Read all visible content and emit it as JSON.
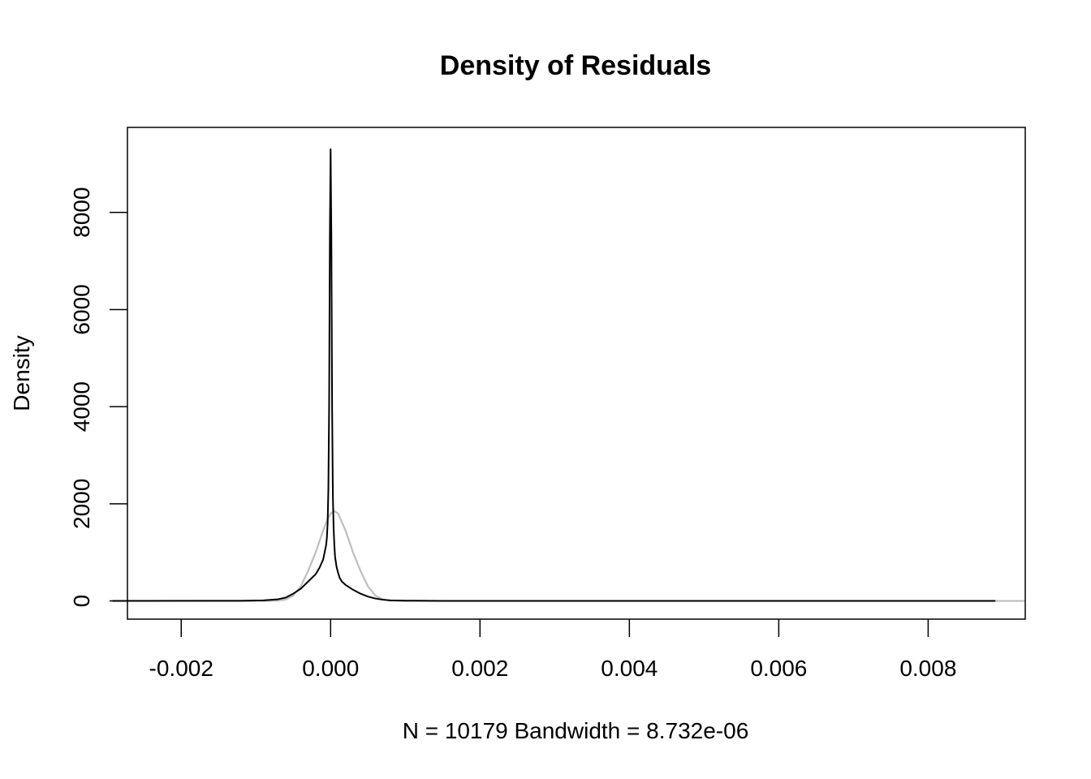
{
  "chart_data": {
    "type": "line",
    "title": "Density of Residuals",
    "xlabel": "N = 10179   Bandwidth = 8.732e-06",
    "ylabel": "Density",
    "xlim": [
      -0.00272,
      0.0093
    ],
    "ylim": [
      -375,
      9750
    ],
    "grid": false,
    "legend": "none",
    "x_ticks": [
      -0.002,
      0.0,
      0.002,
      0.004,
      0.006,
      0.008
    ],
    "x_tick_labels": [
      "-0.002",
      "0.000",
      "0.002",
      "0.004",
      "0.006",
      "0.008"
    ],
    "y_ticks": [
      0,
      2000,
      4000,
      6000,
      8000
    ],
    "y_tick_labels": [
      "0",
      "2000",
      "4000",
      "6000",
      "8000"
    ],
    "series": [
      {
        "color": "#000000",
        "x": [
          -0.00292,
          -0.0012,
          -0.0009,
          -0.0007,
          -0.0006,
          -0.0005,
          -0.0004,
          -0.0003,
          -0.0002,
          -0.00015,
          -0.0001,
          -8e-05,
          -6e-05,
          -5e-05,
          -4e-05,
          -3e-05,
          -2e-05,
          -1e-05,
          0.0,
          1e-05,
          2e-05,
          3e-05,
          4e-05,
          5e-05,
          6e-05,
          8e-05,
          0.0001,
          0.00012,
          0.00015,
          0.0002,
          0.00025,
          0.0003,
          0.0004,
          0.0005,
          0.0006,
          0.0007,
          0.0008,
          0.001,
          0.0015,
          0.003,
          0.006,
          0.0089
        ],
        "y": [
          0,
          3,
          12,
          35,
          70,
          150,
          250,
          400,
          550,
          680,
          850,
          1000,
          1150,
          1300,
          1600,
          2300,
          4000,
          7500,
          9300,
          7500,
          4000,
          2200,
          1500,
          1150,
          900,
          700,
          580,
          480,
          400,
          330,
          280,
          230,
          150,
          90,
          50,
          25,
          12,
          5,
          2,
          0,
          0,
          0
        ]
      },
      {
        "color": "#bebebe",
        "x": [
          -0.00292,
          -0.0008,
          -0.0007,
          -0.0006,
          -0.0005,
          -0.0004,
          -0.0003,
          -0.0002,
          -0.0001,
          -5e-05,
          0.0,
          5e-05,
          0.0001,
          0.0002,
          0.0003,
          0.0004,
          0.0005,
          0.0006,
          0.0007,
          0.0008,
          0.001,
          0.0015,
          0.003,
          0.0093
        ],
        "y": [
          0,
          1,
          6,
          30,
          110,
          300,
          620,
          1000,
          1450,
          1650,
          1800,
          1850,
          1800,
          1450,
          1000,
          620,
          300,
          110,
          30,
          6,
          1,
          0,
          0,
          0
        ]
      }
    ]
  }
}
